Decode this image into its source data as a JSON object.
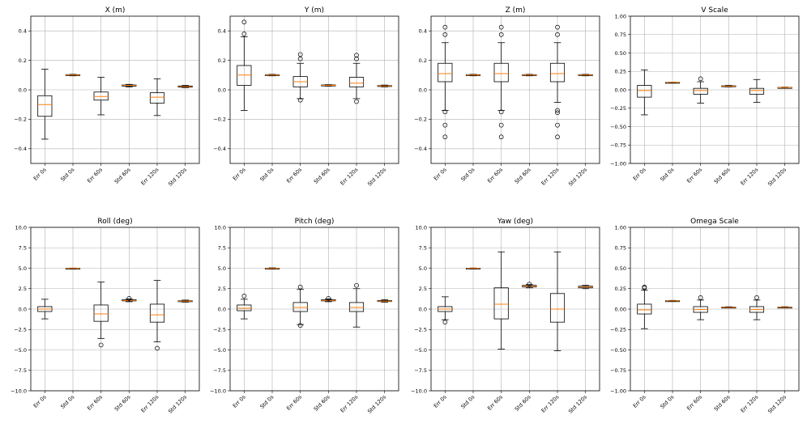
{
  "figure": {
    "categories_note": "box plots of error and std at 0s, 60s, 120s"
  },
  "chart_data": [
    {
      "type": "box",
      "title": "X (m)",
      "categories": [
        "Err 0s",
        "Std 0s",
        "Err 60s",
        "Std 60s",
        "Err 120s",
        "Std 120s"
      ],
      "ylim": [
        -0.5,
        0.5
      ],
      "yticks": [
        -0.4,
        -0.2,
        0.0,
        0.2,
        0.4
      ],
      "ytick_labels": [
        "−0.4",
        "−0.2",
        "0.0",
        "0.2",
        "0.4"
      ],
      "boxes": [
        {
          "low": -0.335,
          "q1": -0.18,
          "med": -0.1,
          "q3": -0.04,
          "high": 0.14,
          "fliers": []
        },
        {
          "low": 0.095,
          "q1": 0.097,
          "med": 0.1,
          "q3": 0.103,
          "high": 0.105,
          "fliers": []
        },
        {
          "low": -0.17,
          "q1": -0.07,
          "med": -0.045,
          "q3": -0.015,
          "high": 0.085,
          "fliers": []
        },
        {
          "low": 0.02,
          "q1": 0.025,
          "med": 0.03,
          "q3": 0.033,
          "high": 0.037,
          "fliers": []
        },
        {
          "low": -0.175,
          "q1": -0.09,
          "med": -0.05,
          "q3": -0.02,
          "high": 0.075,
          "fliers": []
        },
        {
          "low": 0.015,
          "q1": 0.018,
          "med": 0.022,
          "q3": 0.026,
          "high": 0.03,
          "fliers": []
        }
      ]
    },
    {
      "type": "box",
      "title": "Y (m)",
      "categories": [
        "Err 0s",
        "Std 0s",
        "Err 60s",
        "Std 60s",
        "Err 120s",
        "Std 120s"
      ],
      "ylim": [
        -0.5,
        0.5
      ],
      "yticks": [
        -0.4,
        -0.2,
        0.0,
        0.2,
        0.4
      ],
      "ytick_labels": [
        "−0.4",
        "−0.2",
        "0.0",
        "0.2",
        "0.4"
      ],
      "boxes": [
        {
          "low": -0.14,
          "q1": 0.03,
          "med": 0.1,
          "q3": 0.165,
          "high": 0.36,
          "fliers": [
            0.38,
            0.46
          ]
        },
        {
          "low": 0.095,
          "q1": 0.097,
          "med": 0.1,
          "q3": 0.103,
          "high": 0.105,
          "fliers": []
        },
        {
          "low": -0.06,
          "q1": 0.02,
          "med": 0.055,
          "q3": 0.09,
          "high": 0.18,
          "fliers": [
            0.21,
            0.24,
            -0.07
          ]
        },
        {
          "low": 0.025,
          "q1": 0.027,
          "med": 0.03,
          "q3": 0.033,
          "high": 0.035,
          "fliers": []
        },
        {
          "low": -0.06,
          "q1": 0.02,
          "med": 0.045,
          "q3": 0.085,
          "high": 0.18,
          "fliers": [
            0.21,
            0.235,
            -0.08
          ]
        },
        {
          "low": 0.02,
          "q1": 0.023,
          "med": 0.026,
          "q3": 0.029,
          "high": 0.032,
          "fliers": []
        }
      ]
    },
    {
      "type": "box",
      "title": "Z (m)",
      "categories": [
        "Err 0s",
        "Std 0s",
        "Err 60s",
        "Std 60s",
        "Err 120s",
        "Std 120s"
      ],
      "ylim": [
        -0.5,
        0.5
      ],
      "yticks": [
        -0.4,
        -0.2,
        0.0,
        0.2,
        0.4
      ],
      "ytick_labels": [
        "−0.4",
        "−0.2",
        "0.0",
        "0.2",
        "0.4"
      ],
      "boxes": [
        {
          "low": -0.14,
          "q1": 0.055,
          "med": 0.11,
          "q3": 0.18,
          "high": 0.32,
          "fliers": [
            0.375,
            0.425,
            -0.15,
            -0.24,
            -0.32
          ]
        },
        {
          "low": 0.095,
          "q1": 0.097,
          "med": 0.1,
          "q3": 0.103,
          "high": 0.105,
          "fliers": []
        },
        {
          "low": -0.14,
          "q1": 0.055,
          "med": 0.11,
          "q3": 0.18,
          "high": 0.32,
          "fliers": [
            0.375,
            0.425,
            -0.15,
            -0.24,
            -0.32
          ]
        },
        {
          "low": 0.095,
          "q1": 0.097,
          "med": 0.1,
          "q3": 0.103,
          "high": 0.105,
          "fliers": []
        },
        {
          "low": -0.085,
          "q1": 0.055,
          "med": 0.11,
          "q3": 0.18,
          "high": 0.32,
          "fliers": [
            0.375,
            0.425,
            -0.14,
            -0.155,
            -0.24,
            -0.32
          ]
        },
        {
          "low": 0.095,
          "q1": 0.097,
          "med": 0.1,
          "q3": 0.103,
          "high": 0.105,
          "fliers": []
        }
      ]
    },
    {
      "type": "box",
      "title": "V Scale",
      "categories": [
        "Err 0s",
        "Std 0s",
        "Err 60s",
        "Std 60s",
        "Err 120s",
        "Std 120s"
      ],
      "ylim": [
        -1.0,
        1.0
      ],
      "yticks": [
        -1.0,
        -0.75,
        -0.5,
        -0.25,
        0.0,
        0.25,
        0.5,
        0.75,
        1.0
      ],
      "ytick_labels": [
        "−1.00",
        "−0.75",
        "−0.50",
        "−0.25",
        "0.00",
        "0.25",
        "0.50",
        "0.75",
        "1.00"
      ],
      "boxes": [
        {
          "low": -0.34,
          "q1": -0.1,
          "med": -0.01,
          "q3": 0.06,
          "high": 0.27,
          "fliers": []
        },
        {
          "low": 0.097,
          "q1": 0.098,
          "med": 0.1,
          "q3": 0.102,
          "high": 0.103,
          "fliers": []
        },
        {
          "low": -0.18,
          "q1": -0.06,
          "med": -0.01,
          "q3": 0.02,
          "high": 0.11,
          "fliers": [
            0.15
          ]
        },
        {
          "low": 0.04,
          "q1": 0.045,
          "med": 0.05,
          "q3": 0.055,
          "high": 0.06,
          "fliers": []
        },
        {
          "low": -0.17,
          "q1": -0.06,
          "med": -0.01,
          "q3": 0.02,
          "high": 0.14,
          "fliers": []
        },
        {
          "low": 0.025,
          "q1": 0.028,
          "med": 0.03,
          "q3": 0.033,
          "high": 0.036,
          "fliers": []
        }
      ]
    },
    {
      "type": "box",
      "title": "Roll (deg)",
      "categories": [
        "Err 0s",
        "Std 0s",
        "Err 60s",
        "Std 60s",
        "Err 120s",
        "Std 120s"
      ],
      "ylim": [
        -10,
        10
      ],
      "yticks": [
        -10,
        -7.5,
        -5,
        -2.5,
        0,
        2.5,
        5,
        7.5,
        10
      ],
      "ytick_labels": [
        "−10.0",
        "−7.5",
        "−5.0",
        "−2.5",
        "0.0",
        "2.5",
        "5.0",
        "7.5",
        "10.0"
      ],
      "boxes": [
        {
          "low": -1.2,
          "q1": -0.3,
          "med": 0.0,
          "q3": 0.3,
          "high": 1.2,
          "fliers": []
        },
        {
          "low": 4.9,
          "q1": 4.93,
          "med": 4.97,
          "q3": 5.0,
          "high": 5.02,
          "fliers": []
        },
        {
          "low": -3.6,
          "q1": -1.5,
          "med": -0.6,
          "q3": 0.5,
          "high": 3.3,
          "fliers": [
            -4.4
          ]
        },
        {
          "low": 0.9,
          "q1": 1.0,
          "med": 1.05,
          "q3": 1.15,
          "high": 1.25,
          "fliers": [
            1.3
          ]
        },
        {
          "low": -4.0,
          "q1": -1.6,
          "med": -0.7,
          "q3": 0.6,
          "high": 3.5,
          "fliers": [
            -4.8
          ]
        },
        {
          "low": 0.85,
          "q1": 0.92,
          "med": 0.97,
          "q3": 1.02,
          "high": 1.1,
          "fliers": []
        }
      ]
    },
    {
      "type": "box",
      "title": "Pitch (deg)",
      "categories": [
        "Err 0s",
        "Std 0s",
        "Err 60s",
        "Std 60s",
        "Err 120s",
        "Std 120s"
      ],
      "ylim": [
        -10,
        10
      ],
      "yticks": [
        -10,
        -7.5,
        -5,
        -2.5,
        0,
        2.5,
        5,
        7.5,
        10
      ],
      "ytick_labels": [
        "−10.0",
        "−7.5",
        "−5.0",
        "−2.5",
        "0.0",
        "2.5",
        "5.0",
        "7.5",
        "10.0"
      ],
      "boxes": [
        {
          "low": -1.2,
          "q1": -0.2,
          "med": 0.1,
          "q3": 0.5,
          "high": 1.2,
          "fliers": [
            1.6
          ]
        },
        {
          "low": 4.9,
          "q1": 4.93,
          "med": 4.97,
          "q3": 5.0,
          "high": 5.05,
          "fliers": []
        },
        {
          "low": -1.9,
          "q1": -0.3,
          "med": 0.2,
          "q3": 0.8,
          "high": 2.4,
          "fliers": [
            2.7,
            -2.0
          ]
        },
        {
          "low": 0.9,
          "q1": 1.0,
          "med": 1.05,
          "q3": 1.15,
          "high": 1.25,
          "fliers": [
            1.3
          ]
        },
        {
          "low": -2.2,
          "q1": -0.3,
          "med": 0.2,
          "q3": 0.8,
          "high": 2.5,
          "fliers": [
            2.9
          ]
        },
        {
          "low": 0.85,
          "q1": 0.92,
          "med": 0.97,
          "q3": 1.05,
          "high": 1.15,
          "fliers": []
        }
      ]
    },
    {
      "type": "box",
      "title": "Yaw (deg)",
      "categories": [
        "Err 0s",
        "Std 0s",
        "Err 60s",
        "Std 60s",
        "Err 120s",
        "Std 120s"
      ],
      "ylim": [
        -10,
        10
      ],
      "yticks": [
        -10,
        -7.5,
        -5,
        -2.5,
        0,
        2.5,
        5,
        7.5,
        10
      ],
      "ytick_labels": [
        "−10.0",
        "−7.5",
        "−5.0",
        "−2.5",
        "0.0",
        "2.5",
        "5.0",
        "7.5",
        "10.0"
      ],
      "boxes": [
        {
          "low": -1.3,
          "q1": -0.3,
          "med": 0.0,
          "q3": 0.3,
          "high": 1.5,
          "fliers": [
            -1.6
          ]
        },
        {
          "low": 4.95,
          "q1": 4.97,
          "med": 4.99,
          "q3": 5.01,
          "high": 5.03,
          "fliers": []
        },
        {
          "low": -4.9,
          "q1": -1.2,
          "med": 0.6,
          "q3": 2.6,
          "high": 7.0,
          "fliers": []
        },
        {
          "low": 2.6,
          "q1": 2.7,
          "med": 2.8,
          "q3": 2.9,
          "high": 3.0,
          "fliers": [
            3.05
          ]
        },
        {
          "low": -5.1,
          "q1": -1.6,
          "med": 0.0,
          "q3": 1.9,
          "high": 7.0,
          "fliers": []
        },
        {
          "low": 2.5,
          "q1": 2.6,
          "med": 2.7,
          "q3": 2.8,
          "high": 2.9,
          "fliers": []
        }
      ]
    },
    {
      "type": "box",
      "title": "Omega Scale",
      "categories": [
        "Err 0s",
        "Std 0s",
        "Err 60s",
        "Std 60s",
        "Err 120s",
        "Std 120s"
      ],
      "ylim": [
        -1.0,
        1.0
      ],
      "yticks": [
        -1.0,
        -0.75,
        -0.5,
        -0.25,
        0.0,
        0.25,
        0.5,
        0.75,
        1.0
      ],
      "ytick_labels": [
        "−1.00",
        "−0.75",
        "−0.50",
        "−0.25",
        "0.00",
        "0.25",
        "0.50",
        "0.75",
        "1.00"
      ],
      "boxes": [
        {
          "low": -0.24,
          "q1": -0.06,
          "med": -0.01,
          "q3": 0.06,
          "high": 0.23,
          "fliers": [
            0.26,
            0.27
          ]
        },
        {
          "low": 0.095,
          "q1": 0.098,
          "med": 0.1,
          "q3": 0.103,
          "high": 0.106,
          "fliers": []
        },
        {
          "low": -0.13,
          "q1": -0.04,
          "med": -0.005,
          "q3": 0.03,
          "high": 0.11,
          "fliers": [
            0.14
          ]
        },
        {
          "low": 0.015,
          "q1": 0.018,
          "med": 0.02,
          "q3": 0.024,
          "high": 0.028,
          "fliers": []
        },
        {
          "low": -0.13,
          "q1": -0.04,
          "med": -0.005,
          "q3": 0.03,
          "high": 0.11,
          "fliers": [
            0.14
          ]
        },
        {
          "low": 0.015,
          "q1": 0.018,
          "med": 0.02,
          "q3": 0.024,
          "high": 0.028,
          "fliers": []
        }
      ]
    }
  ],
  "colors": {
    "median": "#ff7f0e",
    "grid": "#b0b0b0",
    "axis": "#000000"
  }
}
